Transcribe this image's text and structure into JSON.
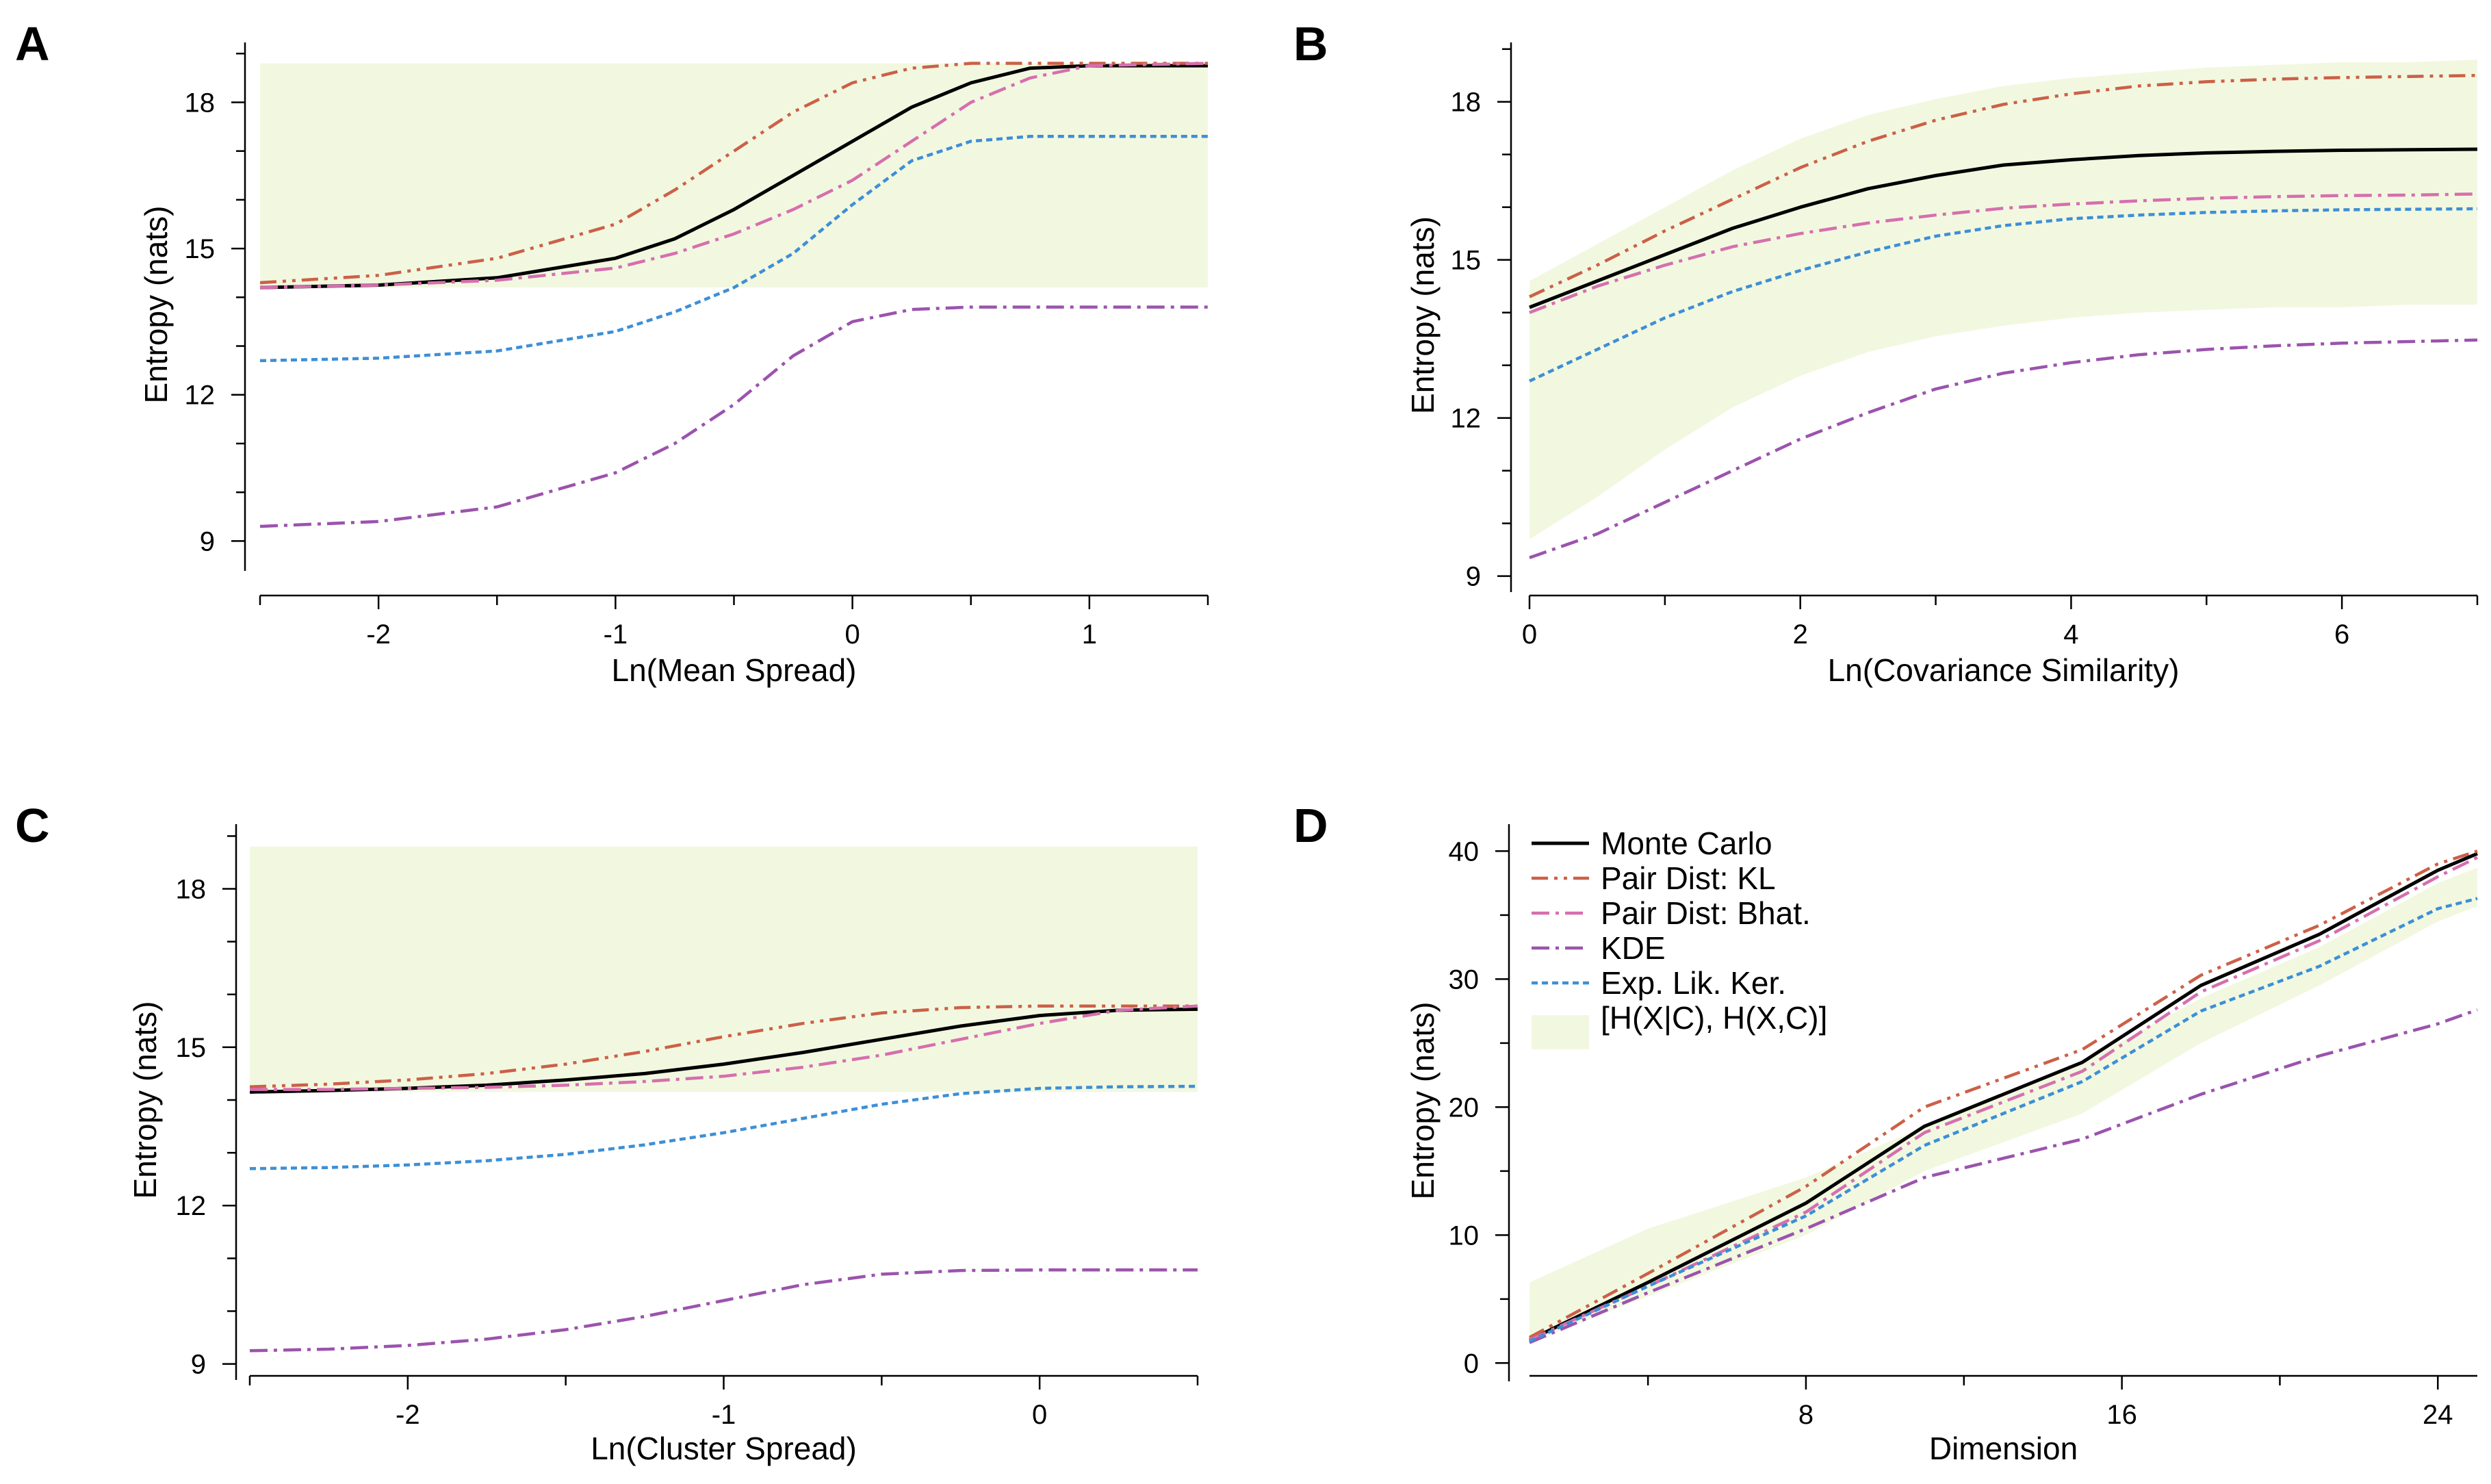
{
  "styles": {
    "mc": {
      "color": "#000000",
      "dash": "",
      "width": 5
    },
    "kl": {
      "color": "#cc6048",
      "dash": "24 9 5 9 5 9",
      "width": 4.5
    },
    "bhat": {
      "color": "#d66fae",
      "dash": "26 9 5 9",
      "width": 4.5
    },
    "kde": {
      "color": "#9b53ad",
      "dash": "26 9 5 9",
      "width": 4.5
    },
    "elk": {
      "color": "#3d8fd6",
      "dash": "9 6",
      "width": 4.5
    },
    "band": {
      "color": "#f2f8e0"
    }
  },
  "legend": {
    "labels": [
      "Monte Carlo",
      "Pair Dist: KL",
      "Pair Dist: Bhat.",
      "KDE",
      "Exp. Lik. Ker.",
      "[H(X|C), H(X,C)]"
    ],
    "keys": [
      "mc",
      "kl",
      "bhat",
      "kde",
      "elk",
      "band"
    ]
  },
  "chart_data": [
    {
      "panel": "A",
      "type": "line",
      "title": "",
      "xlabel": "Ln(Mean Spread)",
      "ylabel": "Entropy (nats)",
      "xlim": [
        -2.5,
        1.5
      ],
      "ylim": [
        8.5,
        19.2
      ],
      "xticks": [
        -2,
        -1,
        0,
        1
      ],
      "xtick_labels": [
        "-2",
        "-1",
        "0",
        "1"
      ],
      "xminor": [
        -2.5,
        -1.5,
        -0.5,
        0.5,
        1.5
      ],
      "yticks": [
        9,
        12,
        15,
        18
      ],
      "ytick_labels": [
        "9",
        "12",
        "15",
        "18"
      ],
      "yminor": [
        10,
        11,
        13,
        14,
        16,
        17,
        19
      ],
      "x": [
        -2.5,
        -2.0,
        -1.5,
        -1.0,
        -0.75,
        -0.5,
        -0.25,
        0.0,
        0.25,
        0.5,
        0.75,
        1.0,
        1.5
      ],
      "band": {
        "lower": [
          14.2,
          14.2,
          14.2,
          14.2,
          14.2,
          14.2,
          14.2,
          14.2,
          14.2,
          14.2,
          14.2,
          14.2,
          14.2
        ],
        "upper": [
          18.8,
          18.8,
          18.8,
          18.8,
          18.8,
          18.8,
          18.8,
          18.8,
          18.8,
          18.8,
          18.8,
          18.8,
          18.8
        ]
      },
      "series": [
        {
          "name": "Monte Carlo",
          "key": "mc",
          "values": [
            14.2,
            14.25,
            14.4,
            14.8,
            15.2,
            15.8,
            16.5,
            17.2,
            17.9,
            18.4,
            18.7,
            18.75,
            18.75
          ]
        },
        {
          "name": "Pair Dist: KL",
          "key": "kl",
          "values": [
            14.3,
            14.45,
            14.8,
            15.5,
            16.2,
            17.0,
            17.8,
            18.4,
            18.7,
            18.8,
            18.8,
            18.8,
            18.8
          ]
        },
        {
          "name": "Pair Dist: Bhat.",
          "key": "bhat",
          "values": [
            14.2,
            14.25,
            14.35,
            14.6,
            14.9,
            15.3,
            15.8,
            16.4,
            17.2,
            18.0,
            18.5,
            18.75,
            18.8
          ]
        },
        {
          "name": "KDE",
          "key": "kde",
          "values": [
            9.3,
            9.4,
            9.7,
            10.4,
            11.0,
            11.8,
            12.8,
            13.5,
            13.75,
            13.8,
            13.8,
            13.8,
            13.8
          ]
        },
        {
          "name": "Exp. Lik. Ker.",
          "key": "elk",
          "values": [
            12.7,
            12.75,
            12.9,
            13.3,
            13.7,
            14.2,
            14.9,
            15.9,
            16.8,
            17.2,
            17.3,
            17.3,
            17.3
          ]
        }
      ]
    },
    {
      "panel": "B",
      "type": "line",
      "title": "",
      "xlabel": "Ln(Covariance Similarity)",
      "ylabel": "Entropy (nats)",
      "xlim": [
        0,
        7
      ],
      "ylim": [
        8.8,
        19.1
      ],
      "xticks": [
        0,
        2,
        4,
        6
      ],
      "xtick_labels": [
        "0",
        "2",
        "4",
        "6"
      ],
      "xminor": [
        1,
        3,
        5,
        7
      ],
      "yticks": [
        9,
        12,
        15,
        18
      ],
      "ytick_labels": [
        "9",
        "12",
        "15",
        "18"
      ],
      "yminor": [
        10,
        11,
        13,
        14,
        16,
        17,
        19
      ],
      "x": [
        0,
        0.5,
        1,
        1.5,
        2,
        2.5,
        3,
        3.5,
        4,
        4.5,
        5,
        5.5,
        6,
        6.5,
        7
      ],
      "band": {
        "lower": [
          9.7,
          10.5,
          11.4,
          12.2,
          12.8,
          13.25,
          13.55,
          13.75,
          13.9,
          14.0,
          14.05,
          14.1,
          14.1,
          14.15,
          14.15
        ],
        "upper": [
          14.6,
          15.3,
          16.0,
          16.7,
          17.3,
          17.75,
          18.05,
          18.3,
          18.45,
          18.55,
          18.65,
          18.7,
          18.75,
          18.75,
          18.8
        ]
      },
      "series": [
        {
          "name": "Monte Carlo",
          "key": "mc",
          "values": [
            14.1,
            14.6,
            15.1,
            15.6,
            16.0,
            16.35,
            16.6,
            16.8,
            16.9,
            16.98,
            17.03,
            17.06,
            17.08,
            17.09,
            17.1
          ]
        },
        {
          "name": "Pair Dist: KL",
          "key": "kl",
          "values": [
            14.3,
            14.9,
            15.55,
            16.15,
            16.75,
            17.25,
            17.65,
            17.95,
            18.15,
            18.3,
            18.38,
            18.43,
            18.46,
            18.48,
            18.5
          ]
        },
        {
          "name": "Pair Dist: Bhat.",
          "key": "bhat",
          "values": [
            14.0,
            14.5,
            14.9,
            15.25,
            15.5,
            15.7,
            15.85,
            15.98,
            16.06,
            16.12,
            16.17,
            16.2,
            16.22,
            16.23,
            16.25
          ]
        },
        {
          "name": "KDE",
          "key": "kde",
          "values": [
            9.35,
            9.8,
            10.4,
            11.0,
            11.6,
            12.1,
            12.55,
            12.85,
            13.05,
            13.2,
            13.3,
            13.37,
            13.42,
            13.45,
            13.48
          ]
        },
        {
          "name": "Exp. Lik. Ker.",
          "key": "elk",
          "values": [
            12.7,
            13.3,
            13.9,
            14.4,
            14.8,
            15.15,
            15.45,
            15.65,
            15.78,
            15.85,
            15.9,
            15.93,
            15.95,
            15.96,
            15.97
          ]
        }
      ]
    },
    {
      "panel": "C",
      "type": "line",
      "title": "",
      "xlabel": "Ln(Cluster Spread)",
      "ylabel": "Entropy (nats)",
      "xlim": [
        -2.5,
        0.5
      ],
      "ylim": [
        8.8,
        19.2
      ],
      "xticks": [
        -2,
        -1,
        0
      ],
      "xtick_labels": [
        "-2",
        "-1",
        "0"
      ],
      "xminor": [
        -2.5,
        -1.5,
        -0.5,
        0.5
      ],
      "yticks": [
        9,
        12,
        15,
        18
      ],
      "ytick_labels": [
        "9",
        "12",
        "15",
        "18"
      ],
      "yminor": [
        10,
        11,
        13,
        14,
        16,
        17,
        19
      ],
      "x": [
        -2.5,
        -2.25,
        -2.0,
        -1.75,
        -1.5,
        -1.25,
        -1.0,
        -0.75,
        -0.5,
        -0.25,
        0.0,
        0.25,
        0.5
      ],
      "band": {
        "lower": [
          14.15,
          14.15,
          14.15,
          14.15,
          14.15,
          14.15,
          14.15,
          14.15,
          14.15,
          14.15,
          14.15,
          14.15,
          14.15
        ],
        "upper": [
          18.8,
          18.8,
          18.8,
          18.8,
          18.8,
          18.8,
          18.8,
          18.8,
          18.8,
          18.8,
          18.8,
          18.8,
          18.8
        ]
      },
      "series": [
        {
          "name": "Monte Carlo",
          "key": "mc",
          "values": [
            14.15,
            14.18,
            14.22,
            14.28,
            14.38,
            14.5,
            14.68,
            14.9,
            15.15,
            15.4,
            15.6,
            15.7,
            15.72
          ]
        },
        {
          "name": "Pair Dist: KL",
          "key": "kl",
          "values": [
            14.25,
            14.3,
            14.38,
            14.5,
            14.68,
            14.92,
            15.2,
            15.45,
            15.65,
            15.75,
            15.78,
            15.78,
            15.78
          ]
        },
        {
          "name": "Pair Dist: Bhat.",
          "key": "bhat",
          "values": [
            14.2,
            14.2,
            14.22,
            14.24,
            14.28,
            14.35,
            14.45,
            14.62,
            14.85,
            15.15,
            15.45,
            15.7,
            15.78
          ]
        },
        {
          "name": "KDE",
          "key": "kde",
          "values": [
            9.25,
            9.28,
            9.35,
            9.47,
            9.65,
            9.9,
            10.2,
            10.5,
            10.7,
            10.77,
            10.78,
            10.78,
            10.78
          ]
        },
        {
          "name": "Exp. Lik. Ker.",
          "key": "elk",
          "values": [
            12.7,
            12.72,
            12.77,
            12.85,
            12.97,
            13.15,
            13.38,
            13.65,
            13.92,
            14.12,
            14.22,
            14.25,
            14.26
          ]
        }
      ]
    },
    {
      "panel": "D",
      "type": "line",
      "title": "",
      "xlabel": "Dimension",
      "ylabel": "Entropy (nats)",
      "xlim": [
        1,
        25
      ],
      "ylim": [
        -1,
        42
      ],
      "xticks": [
        8,
        16,
        24
      ],
      "xtick_labels": [
        "8",
        "16",
        "24"
      ],
      "xminor": [
        4,
        12,
        20
      ],
      "yticks": [
        0,
        10,
        20,
        30,
        40
      ],
      "ytick_labels": [
        "0",
        "10",
        "20",
        "30",
        "40"
      ],
      "yminor": [
        5,
        15,
        25,
        35
      ],
      "x": [
        1,
        4,
        8,
        11,
        15,
        18,
        21,
        24,
        25
      ],
      "band": {
        "lower": [
          1.6,
          5.2,
          10.0,
          15.0,
          19.5,
          25.0,
          29.5,
          34.5,
          35.7
        ],
        "upper": [
          6.3,
          10.5,
          14.5,
          18.5,
          23.5,
          28.5,
          32.5,
          37.5,
          38.7
        ]
      },
      "series": [
        {
          "name": "Monte Carlo",
          "key": "mc",
          "values": [
            1.8,
            6.3,
            12.5,
            18.5,
            23.5,
            29.5,
            33.5,
            38.5,
            39.8
          ]
        },
        {
          "name": "Pair Dist: KL",
          "key": "kl",
          "values": [
            2.0,
            7.0,
            13.8,
            20.0,
            24.5,
            30.3,
            34.2,
            39.0,
            40.0
          ]
        },
        {
          "name": "Pair Dist: Bhat.",
          "key": "bhat",
          "values": [
            1.8,
            6.0,
            11.8,
            18.0,
            22.8,
            29.0,
            33.0,
            38.0,
            39.5
          ]
        },
        {
          "name": "KDE",
          "key": "kde",
          "values": [
            1.6,
            5.5,
            10.5,
            14.5,
            17.5,
            21.0,
            24.0,
            26.5,
            27.6
          ]
        },
        {
          "name": "Exp. Lik. Ker.",
          "key": "elk",
          "values": [
            1.7,
            6.0,
            11.5,
            17.0,
            22.0,
            27.5,
            31.0,
            35.5,
            36.3
          ]
        }
      ]
    }
  ]
}
